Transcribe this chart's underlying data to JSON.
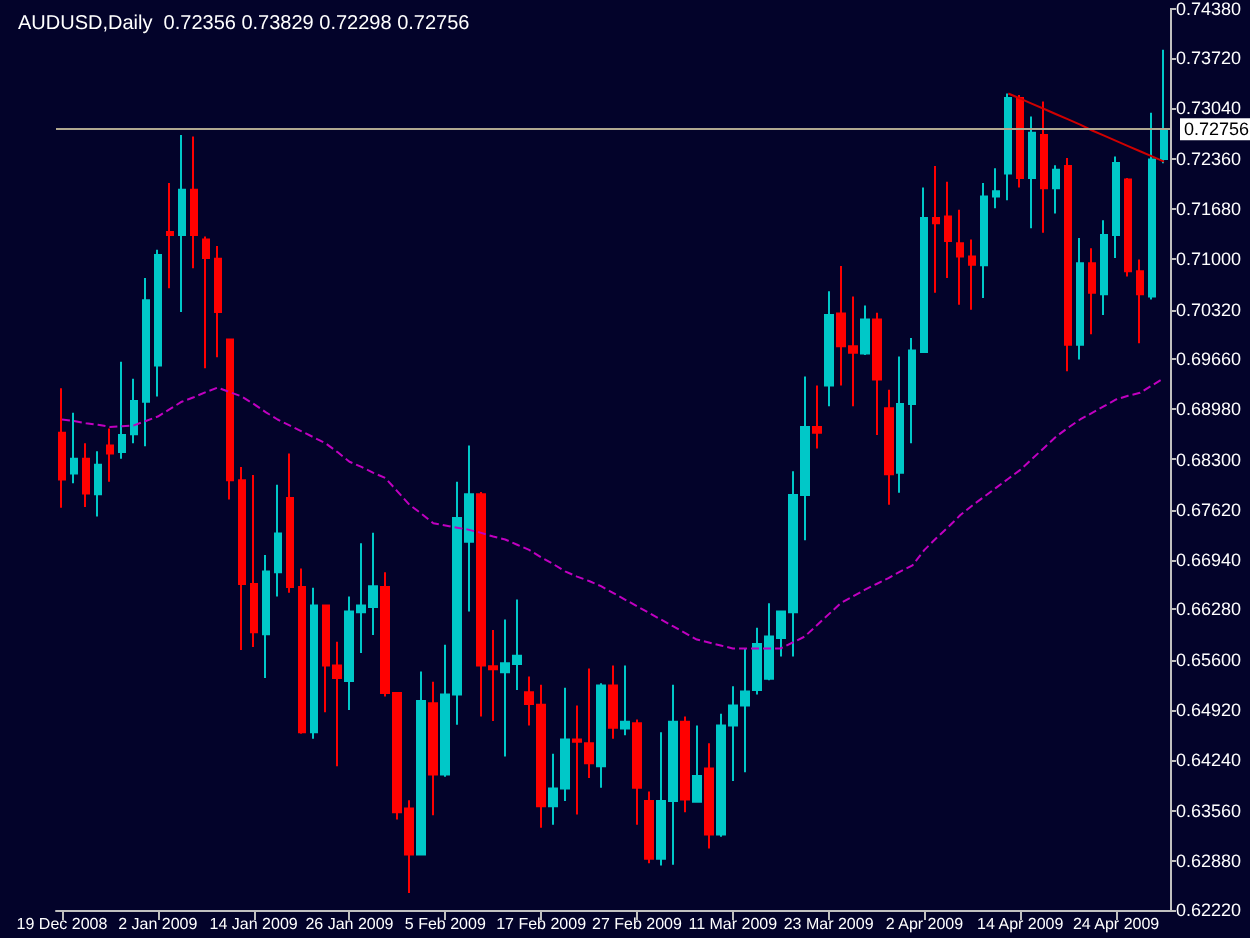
{
  "chart_data": {
    "type": "candlestick",
    "title": "AUDUSD,Daily  0.72356 0.73829 0.72298 0.72756",
    "categories": [
      "19 Dec 2008",
      null,
      null,
      null,
      null,
      null,
      null,
      null,
      "2 Jan 2009",
      null,
      null,
      null,
      null,
      null,
      null,
      null,
      "14 Jan 2009",
      null,
      null,
      null,
      null,
      null,
      null,
      null,
      "26 Jan 2009",
      null,
      null,
      null,
      null,
      null,
      null,
      null,
      "5 Feb 2009",
      null,
      null,
      null,
      null,
      null,
      null,
      null,
      "17 Feb 2009",
      null,
      null,
      null,
      null,
      null,
      null,
      null,
      "27 Feb 2009",
      null,
      null,
      null,
      null,
      null,
      null,
      null,
      "11 Mar 2009",
      null,
      null,
      null,
      null,
      null,
      null,
      null,
      "23 Mar 2009",
      null,
      null,
      null,
      null,
      null,
      null,
      null,
      "2 Apr 2009",
      null,
      null,
      null,
      null,
      null,
      null,
      null,
      "14 Apr 2009",
      null,
      null,
      null,
      null,
      null,
      null,
      null,
      "24 Apr 2009",
      null,
      null,
      null,
      null
    ],
    "ohlc": [
      [
        0.6866,
        0.6926,
        0.6765,
        0.6803
      ],
      [
        0.6811,
        0.6893,
        0.6798,
        0.6831
      ],
      [
        0.6831,
        0.6852,
        0.6766,
        0.6784
      ],
      [
        0.6783,
        0.6841,
        0.6753,
        0.6823
      ],
      [
        0.6849,
        0.6872,
        0.68,
        0.6838
      ],
      [
        0.684,
        0.6962,
        0.6831,
        0.6863
      ],
      [
        0.6864,
        0.6939,
        0.6852,
        0.6909
      ],
      [
        0.6908,
        0.7075,
        0.6848,
        0.7045
      ],
      [
        0.6957,
        0.7113,
        0.6915,
        0.7106
      ],
      [
        0.7137,
        0.7203,
        0.7061,
        0.7133
      ],
      [
        0.7133,
        0.7268,
        0.7029,
        0.7194
      ],
      [
        0.7194,
        0.7266,
        0.7088,
        0.7133
      ],
      [
        0.7127,
        0.7131,
        0.6953,
        0.7102
      ],
      [
        0.7101,
        0.7118,
        0.6968,
        0.7029
      ],
      [
        0.6992,
        0.6992,
        0.6776,
        0.6802
      ],
      [
        0.6802,
        0.682,
        0.6573,
        0.6662
      ],
      [
        0.6662,
        0.6809,
        0.6577,
        0.6597
      ],
      [
        0.6594,
        0.6701,
        0.6535,
        0.6679
      ],
      [
        0.6678,
        0.6796,
        0.6645,
        0.673
      ],
      [
        0.6778,
        0.6838,
        0.665,
        0.6658
      ],
      [
        0.6658,
        0.6683,
        0.646,
        0.6462
      ],
      [
        0.6462,
        0.6657,
        0.6453,
        0.6633
      ],
      [
        0.6633,
        0.6634,
        0.6489,
        0.6552
      ],
      [
        0.6552,
        0.6584,
        0.6416,
        0.6535
      ],
      [
        0.6531,
        0.6645,
        0.6492,
        0.6625
      ],
      [
        0.6624,
        0.6717,
        0.6569,
        0.6633
      ],
      [
        0.6631,
        0.6731,
        0.6593,
        0.6659
      ],
      [
        0.6658,
        0.6678,
        0.651,
        0.6515
      ],
      [
        0.6515,
        0.6515,
        0.6344,
        0.6354
      ],
      [
        0.6359,
        0.637,
        0.6245,
        0.6297
      ],
      [
        0.6297,
        0.6544,
        0.6296,
        0.6504
      ],
      [
        0.6501,
        0.653,
        0.635,
        0.6405
      ],
      [
        0.6405,
        0.658,
        0.6402,
        0.6513
      ],
      [
        0.6513,
        0.68,
        0.6472,
        0.6751
      ],
      [
        0.6719,
        0.6849,
        0.6625,
        0.6783
      ],
      [
        0.6783,
        0.6786,
        0.6483,
        0.6552
      ],
      [
        0.6551,
        0.66,
        0.6477,
        0.6547
      ],
      [
        0.6543,
        0.6614,
        0.6429,
        0.6555
      ],
      [
        0.6554,
        0.6641,
        0.6519,
        0.6565
      ],
      [
        0.6516,
        0.6537,
        0.6471,
        0.65
      ],
      [
        0.6499,
        0.6526,
        0.6333,
        0.6362
      ],
      [
        0.6362,
        0.6433,
        0.6337,
        0.6386
      ],
      [
        0.6386,
        0.6522,
        0.6369,
        0.6452
      ],
      [
        0.6452,
        0.6498,
        0.6351,
        0.6449
      ],
      [
        0.6447,
        0.6548,
        0.64,
        0.642
      ],
      [
        0.6416,
        0.6528,
        0.6387,
        0.6525
      ],
      [
        0.6525,
        0.6552,
        0.6453,
        0.6468
      ],
      [
        0.6467,
        0.6552,
        0.6458,
        0.6476
      ],
      [
        0.6474,
        0.6479,
        0.6337,
        0.6387
      ],
      [
        0.6369,
        0.6382,
        0.6285,
        0.6291
      ],
      [
        0.6291,
        0.6462,
        0.6282,
        0.6369
      ],
      [
        0.6369,
        0.6526,
        0.6283,
        0.6476
      ],
      [
        0.6476,
        0.6483,
        0.6354,
        0.6371
      ],
      [
        0.6368,
        0.6471,
        0.6368,
        0.6403
      ],
      [
        0.6413,
        0.6447,
        0.6305,
        0.6324
      ],
      [
        0.6324,
        0.6487,
        0.6321,
        0.6471
      ],
      [
        0.6471,
        0.6524,
        0.6396,
        0.6498
      ],
      [
        0.6498,
        0.6575,
        0.6408,
        0.6517
      ],
      [
        0.6519,
        0.6603,
        0.6513,
        0.6581
      ],
      [
        0.6534,
        0.6636,
        0.6532,
        0.6591
      ],
      [
        0.6589,
        0.6625,
        0.6564,
        0.6625
      ],
      [
        0.6624,
        0.6814,
        0.6564,
        0.6782
      ],
      [
        0.6782,
        0.6942,
        0.6721,
        0.6874
      ],
      [
        0.6874,
        0.693,
        0.6845,
        0.6866
      ],
      [
        0.693,
        0.7057,
        0.6902,
        0.7025
      ],
      [
        0.7027,
        0.7091,
        0.693,
        0.6983
      ],
      [
        0.6983,
        0.705,
        0.6902,
        0.6974
      ],
      [
        0.6973,
        0.7038,
        0.6971,
        0.7019
      ],
      [
        0.7019,
        0.7028,
        0.6863,
        0.6938
      ],
      [
        0.6899,
        0.6924,
        0.6769,
        0.681
      ],
      [
        0.6812,
        0.6969,
        0.6785,
        0.6905
      ],
      [
        0.6905,
        0.6994,
        0.6852,
        0.6977
      ],
      [
        0.6975,
        0.7197,
        0.6975,
        0.7156
      ],
      [
        0.7156,
        0.7226,
        0.7055,
        0.7149
      ],
      [
        0.7158,
        0.7205,
        0.7075,
        0.7125
      ],
      [
        0.7122,
        0.7167,
        0.7039,
        0.7104
      ],
      [
        0.7104,
        0.7127,
        0.7032,
        0.7093
      ],
      [
        0.7092,
        0.7203,
        0.7048,
        0.7185
      ],
      [
        0.7185,
        0.7223,
        0.7169,
        0.7192
      ],
      [
        0.7216,
        0.7324,
        0.718,
        0.7318
      ],
      [
        0.7318,
        0.7322,
        0.7197,
        0.721
      ],
      [
        0.721,
        0.7293,
        0.7142,
        0.7271
      ],
      [
        0.7268,
        0.7313,
        0.7136,
        0.7196
      ],
      [
        0.7196,
        0.7227,
        0.7162,
        0.7221
      ],
      [
        0.7226,
        0.7237,
        0.6949,
        0.6985
      ],
      [
        0.6985,
        0.7129,
        0.6965,
        0.7095
      ],
      [
        0.7095,
        0.7115,
        0.6999,
        0.7055
      ],
      [
        0.7053,
        0.7153,
        0.7025,
        0.7133
      ],
      [
        0.7133,
        0.7239,
        0.7102,
        0.723
      ],
      [
        0.7208,
        0.721,
        0.7077,
        0.7084
      ],
      [
        0.7084,
        0.71,
        0.6987,
        0.7053
      ],
      [
        0.705,
        0.7298,
        0.7046,
        0.7235
      ],
      [
        0.72356,
        0.73829,
        0.72298,
        0.72756
      ]
    ],
    "colors": [
      "#ff0000",
      "#00c8c8",
      "#ff0000",
      "#00c8c8",
      "#ff0000",
      "#00c8c8",
      "#00c8c8",
      "#00c8c8",
      "#00c8c8",
      "#ff0000",
      "#00c8c8",
      "#ff0000",
      "#ff0000",
      "#ff0000",
      "#ff0000",
      "#ff0000",
      "#ff0000",
      "#00c8c8",
      "#00c8c8",
      "#ff0000",
      "#ff0000",
      "#00c8c8",
      "#ff0000",
      "#ff0000",
      "#00c8c8",
      "#00c8c8",
      "#00c8c8",
      "#ff0000",
      "#ff0000",
      "#ff0000",
      "#00c8c8",
      "#ff0000",
      "#00c8c8",
      "#00c8c8",
      "#00c8c8",
      "#ff0000",
      "#ff0000",
      "#00c8c8",
      "#00c8c8",
      "#ff0000",
      "#ff0000",
      "#00c8c8",
      "#00c8c8",
      "#ff0000",
      "#ff0000",
      "#00c8c8",
      "#ff0000",
      "#00c8c8",
      "#ff0000",
      "#ff0000",
      "#00c8c8",
      "#00c8c8",
      "#ff0000",
      "#00c8c8",
      "#ff0000",
      "#00c8c8",
      "#00c8c8",
      "#00c8c8",
      "#00c8c8",
      "#00c8c8",
      "#00c8c8",
      "#00c8c8",
      "#00c8c8",
      "#ff0000",
      "#00c8c8",
      "#ff0000",
      "#ff0000",
      "#00c8c8",
      "#ff0000",
      "#ff0000",
      "#00c8c8",
      "#00c8c8",
      "#00c8c8",
      "#ff0000",
      "#ff0000",
      "#ff0000",
      "#ff0000",
      "#00c8c8",
      "#00c8c8",
      "#00c8c8",
      "#ff0000",
      "#00c8c8",
      "#ff0000",
      "#00c8c8",
      "#ff0000",
      "#00c8c8",
      "#ff0000",
      "#00c8c8",
      "#00c8c8",
      "#ff0000",
      "#ff0000",
      "#00c8c8",
      "#00c8c8"
    ],
    "series": [
      {
        "type": "line",
        "color": "#c000c0",
        "line_style": "dashed",
        "values": [
          0.6884,
          0.6882,
          0.6879,
          0.6877,
          0.6874,
          0.6875,
          0.6876,
          0.6882,
          0.6888,
          0.6898,
          0.6908,
          0.6914,
          0.6921,
          0.6927,
          0.6921,
          0.6915,
          0.6905,
          0.6894,
          0.6884,
          0.6876,
          0.6868,
          0.686,
          0.6852,
          0.684,
          0.6827,
          0.682,
          0.6812,
          0.6805,
          0.6787,
          0.6769,
          0.6757,
          0.6744,
          0.6741,
          0.6738,
          0.6735,
          0.6731,
          0.6726,
          0.6722,
          0.6715,
          0.6708,
          0.6698,
          0.6689,
          0.6679,
          0.6672,
          0.6666,
          0.6659,
          0.665,
          0.6641,
          0.6632,
          0.6623,
          0.6614,
          0.6605,
          0.6596,
          0.6587,
          0.6583,
          0.6579,
          0.6575,
          0.6575,
          0.6575,
          0.6575,
          0.6575,
          0.6583,
          0.6591,
          0.6606,
          0.6621,
          0.6636,
          0.6645,
          0.6654,
          0.6662,
          0.667,
          0.6679,
          0.6687,
          0.6708,
          0.6724,
          0.6739,
          0.6755,
          0.6768,
          0.678,
          0.6792,
          0.6804,
          0.6816,
          0.6831,
          0.6846,
          0.6861,
          0.6873,
          0.6884,
          0.6893,
          0.6902,
          0.6911,
          0.6916,
          0.692,
          0.693,
          0.694
        ]
      },
      {
        "type": "line",
        "color": "#d00000",
        "line_style": "solid",
        "values": [
          null,
          null,
          null,
          null,
          null,
          null,
          null,
          null,
          null,
          null,
          null,
          null,
          null,
          null,
          null,
          null,
          null,
          null,
          null,
          null,
          null,
          null,
          null,
          null,
          null,
          null,
          null,
          null,
          null,
          null,
          null,
          null,
          null,
          null,
          null,
          null,
          null,
          null,
          null,
          null,
          null,
          null,
          null,
          null,
          null,
          null,
          null,
          null,
          null,
          null,
          null,
          null,
          null,
          null,
          null,
          null,
          null,
          null,
          null,
          null,
          null,
          null,
          null,
          null,
          null,
          null,
          null,
          null,
          null,
          null,
          null,
          null,
          null,
          null,
          null,
          null,
          null,
          null,
          null,
          0.7324,
          0.7317,
          0.731,
          0.7303,
          0.7296,
          0.7289,
          0.7282,
          0.7274,
          0.7267,
          0.726,
          0.7253,
          0.7246,
          0.7239,
          0.7232
        ]
      }
    ],
    "marker": "none",
    "ylim": [
      0.6222,
      0.7438
    ],
    "yticks": [
      {
        "value": 0.7438,
        "label": "0.74380"
      },
      {
        "value": 0.7372,
        "label": "0.73720"
      },
      {
        "value": 0.7304,
        "label": "0.73040"
      },
      {
        "value": 0.7236,
        "label": "0.72360"
      },
      {
        "value": 0.7168,
        "label": "0.71680"
      },
      {
        "value": 0.71,
        "label": "0.71000"
      },
      {
        "value": 0.7032,
        "label": "0.70320"
      },
      {
        "value": 0.6966,
        "label": "0.69660"
      },
      {
        "value": 0.6898,
        "label": "0.68980"
      },
      {
        "value": 0.683,
        "label": "0.68300"
      },
      {
        "value": 0.6762,
        "label": "0.67620"
      },
      {
        "value": 0.6694,
        "label": "0.66940"
      },
      {
        "value": 0.6628,
        "label": "0.66280"
      },
      {
        "value": 0.656,
        "label": "0.65600"
      },
      {
        "value": 0.6492,
        "label": "0.64920"
      },
      {
        "value": 0.6424,
        "label": "0.64240"
      },
      {
        "value": 0.6356,
        "label": "0.63560"
      },
      {
        "value": 0.6288,
        "label": "0.62880"
      },
      {
        "value": 0.6222,
        "label": "0.62220"
      }
    ],
    "ref_lines": [
      {
        "axis": "y",
        "value": 0.72756,
        "label": "0.72756",
        "color": "#b0a890"
      }
    ],
    "grid": false
  }
}
